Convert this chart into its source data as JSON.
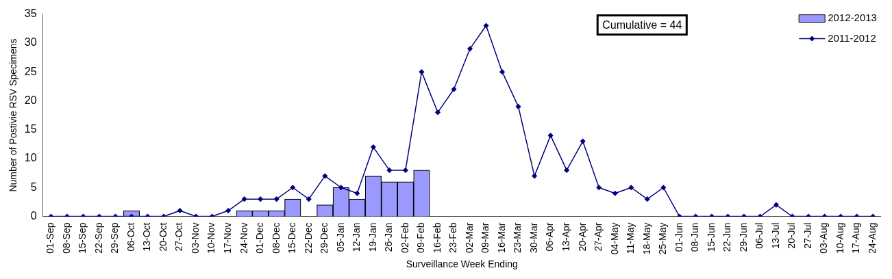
{
  "chart_data": {
    "type": "bar",
    "xlabel": "Surveillance Week Ending",
    "ylabel": "Number of Postivie RSV Specimens",
    "categories": [
      "01-Sep",
      "08-Sep",
      "15-Sep",
      "22-Sep",
      "29-Sep",
      "06-Oct",
      "13-Oct",
      "20-Oct",
      "27-Oct",
      "03-Nov",
      "10-Nov",
      "17-Nov",
      "24-Nov",
      "01-Dec",
      "08-Dec",
      "15-Dec",
      "22-Dec",
      "29-Dec",
      "05-Jan",
      "12-Jan",
      "19-Jan",
      "26-Jan",
      "02-Feb",
      "09-Feb",
      "16-Feb",
      "23-Feb",
      "02-Mar",
      "09-Mar",
      "16-Mar",
      "23-Mar",
      "30-Mar",
      "06-Apr",
      "13-Apr",
      "20-Apr",
      "27-Apr",
      "04-May",
      "11-May",
      "18-May",
      "25-May",
      "01-Jun",
      "08-Jun",
      "15-Jun",
      "22-Jun",
      "29-Jun",
      "06-Jul",
      "13-Jul",
      "20-Jul",
      "27-Jul",
      "03-Aug",
      "10-Aug",
      "17-Aug",
      "24-Aug"
    ],
    "series": [
      {
        "name": "2012-2013",
        "color": "#9999ff",
        "values": [
          0,
          0,
          0,
          0,
          0,
          1,
          0,
          0,
          0,
          0,
          0,
          0,
          1,
          1,
          1,
          3,
          0,
          2,
          5,
          3,
          7,
          6,
          6,
          8,
          null,
          null,
          null,
          null,
          null,
          null,
          null,
          null,
          null,
          null,
          null,
          null,
          null,
          null,
          null,
          null,
          null,
          null,
          null,
          null,
          null,
          null,
          null,
          null,
          null,
          null,
          null,
          null
        ]
      },
      {
        "name": "2011-2012",
        "type": "line",
        "color": "#000080",
        "marker": "diamond",
        "values": [
          0,
          0,
          0,
          0,
          0,
          0,
          0,
          0,
          1,
          0,
          0,
          1,
          3,
          3,
          3,
          5,
          3,
          7,
          5,
          4,
          12,
          8,
          8,
          25,
          18,
          22,
          29,
          33,
          25,
          19,
          7,
          14,
          8,
          13,
          5,
          4,
          5,
          3,
          5,
          0,
          0,
          0,
          0,
          0,
          0,
          2,
          0,
          0,
          0,
          0,
          0,
          0
        ]
      }
    ],
    "ylim": [
      0,
      35
    ],
    "yticks": [
      0,
      5,
      10,
      15,
      20,
      25,
      30,
      35
    ],
    "annotations": [
      "Cumulative = 44"
    ],
    "legend": "top right",
    "grid": false
  }
}
